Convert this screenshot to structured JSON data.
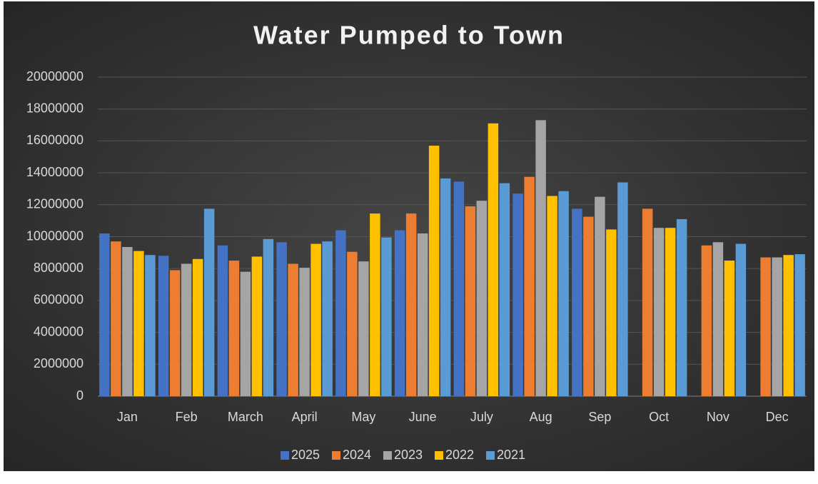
{
  "chart_data": {
    "type": "bar",
    "title": "Water Pumped to Town",
    "categories": [
      "Jan",
      "Feb",
      "March",
      "April",
      "May",
      "June",
      "July",
      "Aug",
      "Sep",
      "Oct",
      "Nov",
      "Dec"
    ],
    "series": [
      {
        "name": "2025",
        "color": "#4472c4",
        "values": [
          10200000,
          8800000,
          9450000,
          9650000,
          10400000,
          10400000,
          13450000,
          12700000,
          11750000,
          null,
          null,
          null
        ]
      },
      {
        "name": "2024",
        "color": "#ed7d31",
        "values": [
          9700000,
          7900000,
          8500000,
          8300000,
          9050000,
          11450000,
          11900000,
          13750000,
          11250000,
          11750000,
          9450000,
          8700000
        ]
      },
      {
        "name": "2023",
        "color": "#a5a5a5",
        "values": [
          9350000,
          8300000,
          7800000,
          8050000,
          8450000,
          10200000,
          12250000,
          17300000,
          12500000,
          10550000,
          9650000,
          8700000
        ]
      },
      {
        "name": "2022",
        "color": "#ffc000",
        "values": [
          9100000,
          8600000,
          8750000,
          9550000,
          11450000,
          15700000,
          17100000,
          12550000,
          10450000,
          10550000,
          8500000,
          8850000
        ]
      },
      {
        "name": "2021",
        "color": "#5b9bd5",
        "values": [
          8850000,
          11750000,
          9850000,
          9700000,
          9950000,
          13650000,
          13350000,
          12850000,
          13400000,
          11100000,
          9550000,
          8900000
        ]
      }
    ],
    "ylim": [
      0,
      20000000
    ],
    "yticks": [
      0,
      2000000,
      4000000,
      6000000,
      8000000,
      10000000,
      12000000,
      14000000,
      16000000,
      18000000,
      20000000
    ],
    "grid": true,
    "legend": "bottom"
  }
}
